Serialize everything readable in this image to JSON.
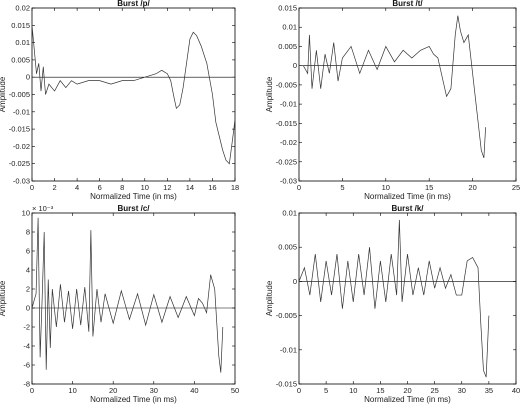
{
  "chart_data": [
    {
      "type": "line",
      "title": "Burst /p/",
      "xlabel": "Normalized Time (in ms)",
      "ylabel": "Amplitude",
      "xlim": [
        0,
        18
      ],
      "ylim": [
        -0.03,
        0.02
      ],
      "xticks": [
        0,
        2,
        4,
        6,
        8,
        10,
        12,
        14,
        16,
        18
      ],
      "yticks": [
        -0.03,
        -0.025,
        -0.02,
        -0.015,
        -0.01,
        -0.005,
        0,
        0.005,
        0.01,
        0.015,
        0.02
      ],
      "ytick_labels": [
        "-0.03",
        "-0.025",
        "-0.02",
        "-0.015",
        "-0.01",
        "-0.005",
        "0",
        "0.005",
        "0.01",
        "0.015",
        "0.02"
      ],
      "exponent": "",
      "grid": false,
      "zero_line": true,
      "series": [
        {
          "x": [
            0,
            0.2,
            0.4,
            0.6,
            0.8,
            1,
            1.2,
            1.5,
            2,
            2.5,
            3,
            3.5,
            4,
            5,
            6,
            7,
            8,
            9,
            10,
            11,
            11.5,
            12,
            12.3,
            12.6,
            12.8,
            13.1,
            13.4,
            13.7,
            14,
            14.3,
            14.6,
            15,
            15.5,
            16,
            16.3,
            16.6,
            16.9,
            17.2,
            17.5,
            17.7,
            17.9,
            18
          ],
          "y": [
            0.015,
            0.008,
            0.001,
            0.004,
            -0.004,
            0.003,
            -0.005,
            -0.002,
            -0.004,
            -0.001,
            -0.003,
            -0.001,
            -0.002,
            -0.001,
            -0.001,
            -0.002,
            -0.001,
            -0.001,
            0,
            0.001,
            0.002,
            0.001,
            -0.001,
            -0.006,
            -0.009,
            -0.008,
            -0.003,
            0.004,
            0.011,
            0.013,
            0.012,
            0.009,
            0.004,
            -0.005,
            -0.013,
            -0.017,
            -0.021,
            -0.024,
            -0.025,
            -0.02,
            -0.015,
            -0.012
          ]
        }
      ]
    },
    {
      "type": "line",
      "title": "Burst /t/",
      "xlabel": "Normalized Time (in ms)",
      "ylabel": "Amplitude",
      "xlim": [
        0,
        25
      ],
      "ylim": [
        -0.03,
        0.015
      ],
      "xticks": [
        0,
        5,
        10,
        15,
        20,
        25
      ],
      "yticks": [
        -0.03,
        -0.025,
        -0.02,
        -0.015,
        -0.01,
        -0.005,
        0,
        0.005,
        0.01,
        0.015
      ],
      "ytick_labels": [
        "-0.03",
        "-0.025",
        "-0.02",
        "-0.015",
        "-0.01",
        "-0.005",
        "0",
        "0.005",
        "0.01",
        "0.015"
      ],
      "exponent": "",
      "grid": false,
      "zero_line": true,
      "series": [
        {
          "x": [
            0,
            0.5,
            1,
            1.2,
            1.5,
            2,
            2.5,
            3,
            3.5,
            4,
            4.5,
            5,
            6,
            7,
            8,
            9,
            10,
            11,
            12,
            13,
            14,
            15,
            15.5,
            16,
            16.5,
            17,
            17.5,
            18,
            18.3,
            18.6,
            19,
            19.5,
            20,
            20.5,
            21,
            21.3,
            21.5
          ],
          "y": [
            0,
            0,
            -0.002,
            0.008,
            -0.006,
            0.004,
            -0.006,
            0.003,
            -0.002,
            0.006,
            -0.004,
            0.002,
            0.005,
            -0.002,
            0.004,
            -0.001,
            0.005,
            0.001,
            0.004,
            0.002,
            0.004,
            0.005,
            0.003,
            0.002,
            -0.003,
            -0.008,
            -0.006,
            0.008,
            0.013,
            0.009,
            0.006,
            0.008,
            -0.002,
            -0.012,
            -0.022,
            -0.024,
            -0.016
          ]
        }
      ]
    },
    {
      "type": "line",
      "title": "Burst /c/",
      "xlabel": "Normalized Time (in ms)",
      "ylabel": "Amplitude",
      "xlim": [
        0,
        50
      ],
      "ylim": [
        -8,
        10
      ],
      "xticks": [
        0,
        10,
        20,
        30,
        40,
        50
      ],
      "yticks": [
        -8,
        -6,
        -4,
        -2,
        0,
        2,
        4,
        6,
        8,
        10
      ],
      "ytick_labels": [
        "-8",
        "-6",
        "-4",
        "-2",
        "0",
        "2",
        "4",
        "6",
        "8",
        "10"
      ],
      "exponent": "× 10⁻³",
      "grid": false,
      "zero_line": true,
      "series": [
        {
          "x": [
            0,
            1,
            1.5,
            2,
            2.5,
            3,
            3.5,
            4,
            4.5,
            5,
            6,
            7,
            8,
            9,
            10,
            11,
            12,
            13,
            14,
            14.5,
            15,
            16,
            17,
            18,
            20,
            22,
            24,
            26,
            28,
            30,
            32,
            34,
            36,
            38,
            40,
            41,
            42,
            43,
            44,
            45,
            46,
            46.5,
            47
          ],
          "y": [
            0,
            1.5,
            9.5,
            -5.2,
            1,
            8,
            -6.5,
            3,
            -4.2,
            2,
            -2,
            2.5,
            -1.5,
            1.8,
            -2.2,
            2,
            -1.8,
            2.2,
            -2.5,
            8.2,
            -3,
            2,
            -1.5,
            1.5,
            -1.6,
            1.8,
            -1.2,
            1.5,
            -1.8,
            1.4,
            -1.5,
            1.2,
            -1,
            1.2,
            -0.8,
            1,
            0.5,
            -0.5,
            3.5,
            2,
            -5,
            -6.8,
            -2
          ]
        }
      ]
    },
    {
      "type": "line",
      "title": "Burst /k/",
      "xlabel": "Normalized Time (in ms)",
      "ylabel": "Amplitude",
      "xlim": [
        0,
        40
      ],
      "ylim": [
        -0.015,
        0.01
      ],
      "xticks": [
        0,
        5,
        10,
        15,
        20,
        25,
        30,
        35,
        40
      ],
      "yticks": [
        -0.015,
        -0.01,
        -0.005,
        0,
        0.005,
        0.01
      ],
      "ytick_labels": [
        "-0.015",
        "-0.01",
        "-0.005",
        "0",
        "0.005",
        "0.01"
      ],
      "exponent": "",
      "grid": false,
      "zero_line": true,
      "series": [
        {
          "x": [
            0,
            1,
            2,
            3,
            4,
            5,
            6,
            7,
            8,
            9,
            10,
            11,
            12,
            13,
            14,
            15,
            16,
            17,
            18,
            18.5,
            19,
            20,
            21,
            22,
            23,
            24,
            25,
            26,
            27,
            28,
            29,
            30,
            31,
            32,
            33,
            33.5,
            34,
            34.5,
            35
          ],
          "y": [
            0,
            0.002,
            -0.002,
            0.004,
            -0.003,
            0.003,
            -0.002,
            0.004,
            -0.004,
            0.003,
            -0.003,
            0.004,
            -0.002,
            0.005,
            -0.004,
            0.003,
            -0.003,
            0.004,
            -0.002,
            0.009,
            -0.003,
            0.004,
            -0.002,
            0.002,
            -0.002,
            0.003,
            -0.001,
            0.002,
            -0.001,
            0.001,
            -0.002,
            -0.002,
            0.003,
            0.0035,
            0.002,
            -0.006,
            -0.013,
            -0.014,
            -0.005
          ]
        }
      ]
    }
  ]
}
